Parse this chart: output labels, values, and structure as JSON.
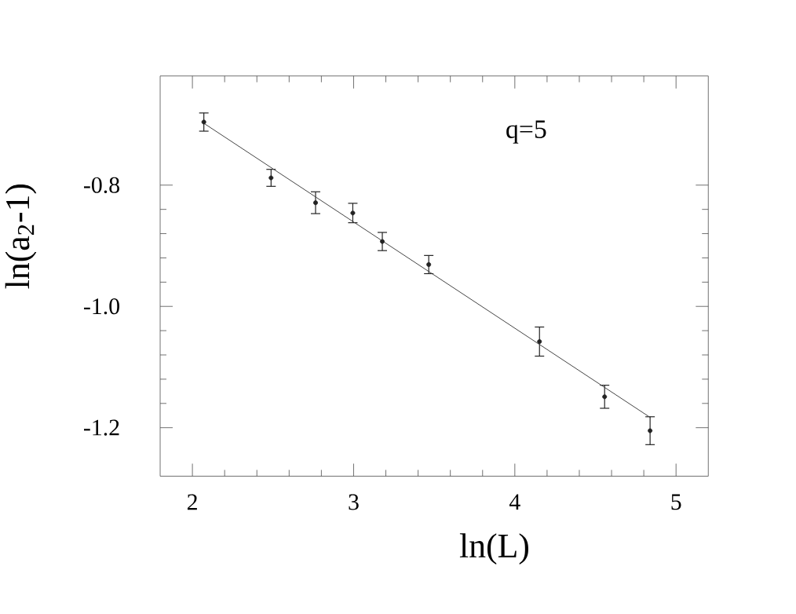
{
  "chart_data": {
    "type": "scatter",
    "xlabel": "ln(L)",
    "ylabel": "ln(a$_{2}$-1)",
    "annotations": [
      "q=5"
    ],
    "xlim": [
      1.8,
      5.2
    ],
    "ylim": [
      -1.28,
      -0.62
    ],
    "xticks": [
      2,
      3,
      4,
      5
    ],
    "yticks": [
      -0.8,
      {
        "value": -1.0,
        "label": "-1.0"
      },
      -1.2
    ],
    "series": [
      {
        "color": "#222222",
        "marker": "circle",
        "x": [
          2.071,
          2.488,
          2.764,
          2.995,
          3.178,
          3.466,
          4.153,
          4.557,
          4.839
        ],
        "values": [
          -0.696,
          -0.788,
          -0.829,
          -0.846,
          -0.893,
          -0.931,
          -1.058,
          -1.149,
          -1.205
        ],
        "errors": [
          0.015,
          0.014,
          0.018,
          0.016,
          0.015,
          0.015,
          0.024,
          0.019,
          0.023
        ]
      },
      {
        "type": "line",
        "marker": "none",
        "color": "#444444",
        "x": [
          2.071,
          4.839
        ],
        "values": [
          -0.698,
          -1.183
        ]
      }
    ]
  }
}
